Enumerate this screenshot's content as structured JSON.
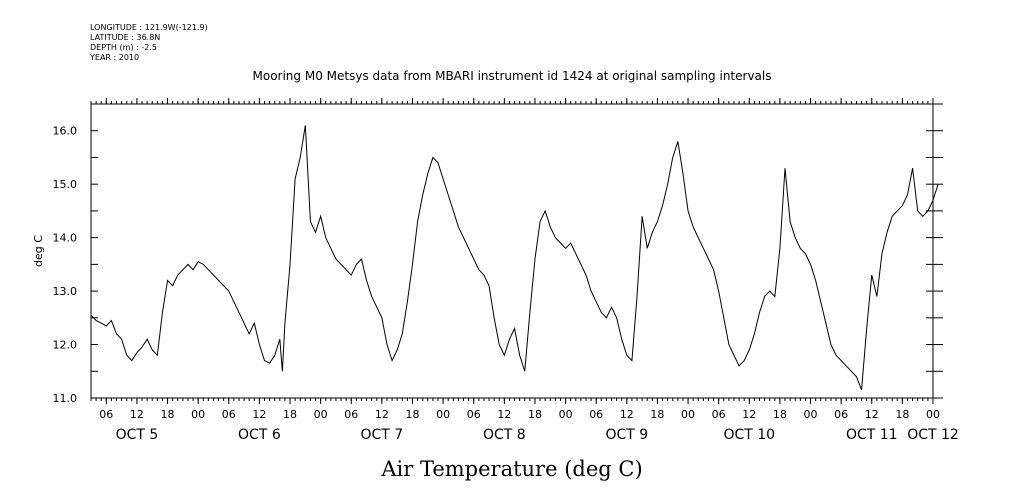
{
  "meta": {
    "longitude": "LONGITUDE : 121.9W(-121.9)",
    "latitude": "LATITUDE : 36.8N",
    "depth": "DEPTH (m) : -2.5",
    "year": "YEAR : 2010"
  },
  "chart_data": {
    "type": "line",
    "title": "Mooring M0 Metsys data from MBARI instrument id 1424 at original sampling intervals",
    "xlabel": "Air Temperature (deg C)",
    "ylabel": "deg C",
    "ylim": [
      11.0,
      16.5
    ],
    "yticks": [
      "11.0",
      "12.0",
      "13.0",
      "14.0",
      "15.0",
      "16.0"
    ],
    "x_unit": "hours since 00 Oct 5 2010",
    "xlim": [
      3,
      168
    ],
    "hour_ticks": [
      {
        "x": 6,
        "label": "06"
      },
      {
        "x": 12,
        "label": "12"
      },
      {
        "x": 18,
        "label": "18"
      },
      {
        "x": 24,
        "label": "00"
      },
      {
        "x": 30,
        "label": "06"
      },
      {
        "x": 36,
        "label": "12"
      },
      {
        "x": 42,
        "label": "18"
      },
      {
        "x": 48,
        "label": "00"
      },
      {
        "x": 54,
        "label": "06"
      },
      {
        "x": 60,
        "label": "12"
      },
      {
        "x": 66,
        "label": "18"
      },
      {
        "x": 72,
        "label": "00"
      },
      {
        "x": 78,
        "label": "06"
      },
      {
        "x": 84,
        "label": "12"
      },
      {
        "x": 90,
        "label": "18"
      },
      {
        "x": 96,
        "label": "00"
      },
      {
        "x": 102,
        "label": "06"
      },
      {
        "x": 108,
        "label": "12"
      },
      {
        "x": 114,
        "label": "18"
      },
      {
        "x": 120,
        "label": "00"
      },
      {
        "x": 126,
        "label": "06"
      },
      {
        "x": 132,
        "label": "12"
      },
      {
        "x": 138,
        "label": "18"
      },
      {
        "x": 144,
        "label": "00"
      },
      {
        "x": 150,
        "label": "06"
      },
      {
        "x": 156,
        "label": "12"
      },
      {
        "x": 162,
        "label": "18"
      },
      {
        "x": 168,
        "label": "00"
      }
    ],
    "day_labels": [
      {
        "x": 12,
        "label": "OCT  5"
      },
      {
        "x": 36,
        "label": "OCT  6"
      },
      {
        "x": 60,
        "label": "OCT  7"
      },
      {
        "x": 84,
        "label": "OCT  8"
      },
      {
        "x": 108,
        "label": "OCT  9"
      },
      {
        "x": 132,
        "label": "OCT 10"
      },
      {
        "x": 156,
        "label": "OCT 11"
      },
      {
        "x": 168,
        "label": "OCT 12"
      }
    ],
    "series": [
      {
        "x": [
          3,
          4,
          5,
          6,
          7,
          8,
          9,
          10,
          11,
          12,
          13,
          14,
          15,
          16,
          17,
          18,
          19,
          20,
          21,
          22,
          23,
          24,
          25,
          26,
          27,
          28,
          29,
          30,
          31,
          32,
          33,
          34,
          35,
          36,
          37,
          38,
          39,
          40,
          40.5,
          41,
          42,
          43,
          44,
          45,
          46,
          47,
          48,
          49,
          50,
          51,
          52,
          53,
          54,
          55,
          56,
          57,
          58,
          59,
          60,
          61,
          62,
          63,
          64,
          65,
          66,
          67,
          68,
          69,
          70,
          71,
          72,
          73,
          74,
          75,
          76,
          77,
          78,
          79,
          80,
          81,
          82,
          83,
          84,
          85,
          86,
          87,
          88,
          89,
          90,
          91,
          92,
          93,
          94,
          95,
          96,
          97,
          98,
          99,
          100,
          101,
          102,
          103,
          104,
          105,
          106,
          107,
          108,
          109,
          110,
          111,
          112,
          113,
          114,
          115,
          116,
          117,
          118,
          119,
          120,
          121,
          122,
          123,
          124,
          125,
          126,
          127,
          128,
          129,
          130,
          131,
          132,
          133,
          134,
          135,
          136,
          137,
          138,
          139,
          140,
          141,
          142,
          143,
          144,
          145,
          146,
          147,
          148,
          149,
          150,
          151,
          152,
          153,
          154,
          155,
          156,
          157,
          158,
          159,
          160,
          161,
          162,
          163,
          164,
          165,
          166,
          167,
          168,
          169
        ],
        "y": [
          12.55,
          12.45,
          12.4,
          12.35,
          12.45,
          12.2,
          12.1,
          11.8,
          11.7,
          11.85,
          11.95,
          12.1,
          11.9,
          11.8,
          12.6,
          13.2,
          13.1,
          13.3,
          13.4,
          13.5,
          13.4,
          13.55,
          13.5,
          13.4,
          13.3,
          13.2,
          13.1,
          13.0,
          12.8,
          12.6,
          12.4,
          12.2,
          12.4,
          12.0,
          11.7,
          11.65,
          11.8,
          12.1,
          11.5,
          12.4,
          13.5,
          15.1,
          15.5,
          16.1,
          14.3,
          14.1,
          14.4,
          14.0,
          13.8,
          13.6,
          13.5,
          13.4,
          13.3,
          13.5,
          13.6,
          13.2,
          12.9,
          12.7,
          12.5,
          12.0,
          11.7,
          11.9,
          12.2,
          12.8,
          13.5,
          14.3,
          14.8,
          15.2,
          15.5,
          15.4,
          15.1,
          14.8,
          14.5,
          14.2,
          14.0,
          13.8,
          13.6,
          13.4,
          13.3,
          13.1,
          12.5,
          12.0,
          11.8,
          12.1,
          12.3,
          11.8,
          11.5,
          12.6,
          13.6,
          14.3,
          14.5,
          14.2,
          14.0,
          13.9,
          13.8,
          13.9,
          13.7,
          13.5,
          13.3,
          13.0,
          12.8,
          12.6,
          12.5,
          12.7,
          12.5,
          12.1,
          11.8,
          11.7,
          12.9,
          14.4,
          13.8,
          14.1,
          14.3,
          14.6,
          15.0,
          15.5,
          15.8,
          15.2,
          14.5,
          14.2,
          14.0,
          13.8,
          13.6,
          13.4,
          13.0,
          12.5,
          12.0,
          11.8,
          11.6,
          11.7,
          11.9,
          12.2,
          12.6,
          12.9,
          13.0,
          12.9,
          13.8,
          15.3,
          14.3,
          14.0,
          13.8,
          13.7,
          13.5,
          13.2,
          12.8,
          12.4,
          12.0,
          11.8,
          11.7,
          11.6,
          11.5,
          11.4,
          11.15,
          12.3,
          13.3,
          12.9,
          13.7,
          14.1,
          14.4,
          14.5,
          14.6,
          14.8,
          15.3,
          14.5,
          14.4,
          14.5,
          14.7,
          15.0
        ]
      }
    ]
  }
}
